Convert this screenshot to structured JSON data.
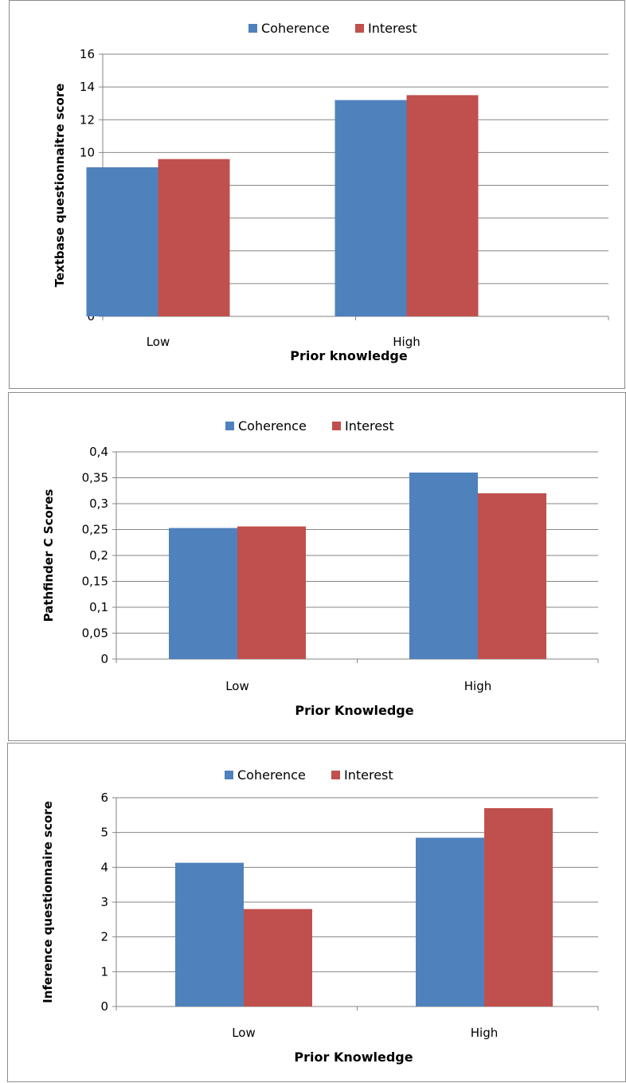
{
  "chart_data": [
    {
      "type": "bar",
      "categories": [
        "Low",
        "High"
      ],
      "series": [
        {
          "name": "Coherence",
          "values": [
            9.1,
            13.2
          ]
        },
        {
          "name": "Interest",
          "values": [
            9.6,
            13.5
          ]
        }
      ],
      "xlabel": "Prior knowledge",
      "ylabel": "Textbase questionnaitre score",
      "ylim": [
        0,
        16
      ],
      "yticks": [
        "0",
        "2",
        "4",
        "6",
        "8",
        "10",
        "12",
        "14",
        "16"
      ],
      "ytick_values": [
        0,
        2,
        4,
        6,
        8,
        10,
        12,
        14,
        16
      ],
      "grid": true,
      "legend": "top-center",
      "colors": [
        "#4f81bd",
        "#c0504d"
      ]
    },
    {
      "type": "bar",
      "categories": [
        "Low",
        "High"
      ],
      "series": [
        {
          "name": "Coherence",
          "values": [
            0.253,
            0.36
          ]
        },
        {
          "name": "Interest",
          "values": [
            0.256,
            0.32
          ]
        }
      ],
      "xlabel": "Prior Knowledge",
      "ylabel": "Pathfinder  C  Scores",
      "ylim": [
        0,
        0.4
      ],
      "yticks": [
        "0",
        "0,05",
        "0,1",
        "0,15",
        "0,2",
        "0,25",
        "0,3",
        "0,35",
        "0,4"
      ],
      "ytick_values": [
        0,
        0.05,
        0.1,
        0.15,
        0.2,
        0.25,
        0.3,
        0.35,
        0.4
      ],
      "grid": true,
      "legend": "top-center",
      "colors": [
        "#4f81bd",
        "#c0504d"
      ]
    },
    {
      "type": "bar",
      "categories": [
        "Low",
        "High"
      ],
      "series": [
        {
          "name": "Coherence",
          "values": [
            4.13,
            4.85
          ]
        },
        {
          "name": "Interest",
          "values": [
            2.8,
            5.7
          ]
        }
      ],
      "xlabel": "Prior Knowledge",
      "ylabel": "Inference questionnaire score",
      "ylim": [
        0,
        6
      ],
      "yticks": [
        "0",
        "1",
        "2",
        "3",
        "4",
        "5",
        "6"
      ],
      "ytick_values": [
        0,
        1,
        2,
        3,
        4,
        5,
        6
      ],
      "grid": true,
      "legend": "top-center",
      "colors": [
        "#4f81bd",
        "#c0504d"
      ]
    }
  ]
}
